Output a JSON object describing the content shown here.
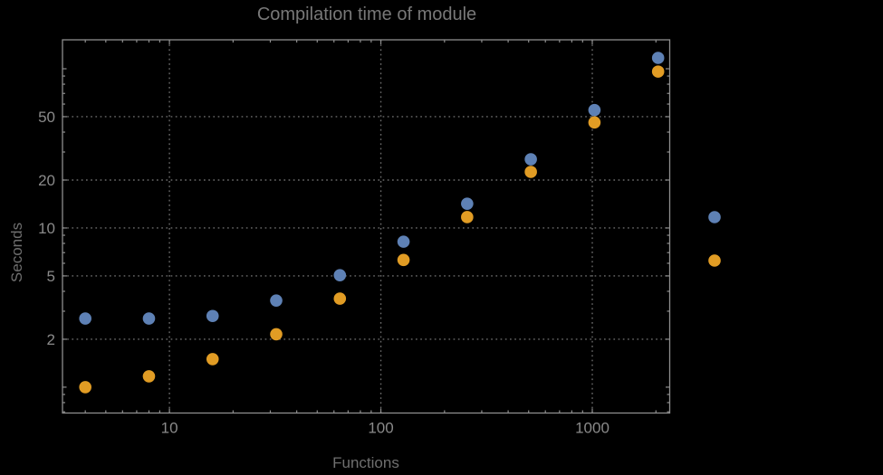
{
  "colors": {
    "background": "#000000",
    "frame": "#8e8e8e",
    "grid": "#6a6a6a",
    "title_text": "#787878",
    "axis_label_text": "#6f6f6f",
    "tick_label_text": "#8a8a8a",
    "series_blue": "#5E81B5",
    "series_orange": "#E19C24"
  },
  "chart_data": {
    "type": "scatter",
    "title": "Compilation time of module",
    "xlabel": "Functions",
    "ylabel": "Seconds",
    "x_scale": "log",
    "y_scale": "log",
    "x_range": [
      3.12,
      2324
    ],
    "y_range": [
      0.688,
      152
    ],
    "grid": "dotted",
    "legend_position": "right",
    "x_ticks_labeled": [
      10,
      100,
      1000
    ],
    "x_tick_labels": [
      "10",
      "100",
      "1000"
    ],
    "x_ticks_minor": [
      4,
      5,
      6,
      7,
      8,
      9,
      20,
      30,
      40,
      50,
      60,
      70,
      80,
      90,
      200,
      300,
      400,
      500,
      600,
      700,
      800,
      900,
      2000
    ],
    "y_ticks_labeled": [
      2,
      5,
      10,
      20,
      50
    ],
    "y_tick_labels": [
      "2",
      "5",
      "10",
      "20",
      "50"
    ],
    "y_ticks_unlabeled_major": [
      1,
      100
    ],
    "y_ticks_minor": [
      0.7,
      0.8,
      0.9,
      3,
      4,
      6,
      7,
      8,
      9,
      30,
      40,
      60,
      70,
      80,
      90
    ],
    "gridlines_x": [
      10,
      100,
      1000
    ],
    "gridlines_y": [
      2,
      5,
      10,
      20,
      50
    ],
    "x": [
      4,
      8,
      16,
      32,
      64,
      128,
      256,
      512,
      1024,
      2048
    ],
    "series": [
      {
        "name": "blue",
        "color": "#5E81B5",
        "values": [
          2.7,
          2.7,
          2.8,
          3.5,
          5.05,
          8.2,
          14.2,
          27,
          55,
          117
        ]
      },
      {
        "name": "orange",
        "color": "#E19C24",
        "values": [
          1.0,
          1.17,
          1.5,
          2.15,
          3.6,
          6.3,
          11.7,
          22.5,
          46,
          96
        ]
      }
    ],
    "legend_marker_colors": [
      "#5E81B5",
      "#E19C24"
    ]
  }
}
